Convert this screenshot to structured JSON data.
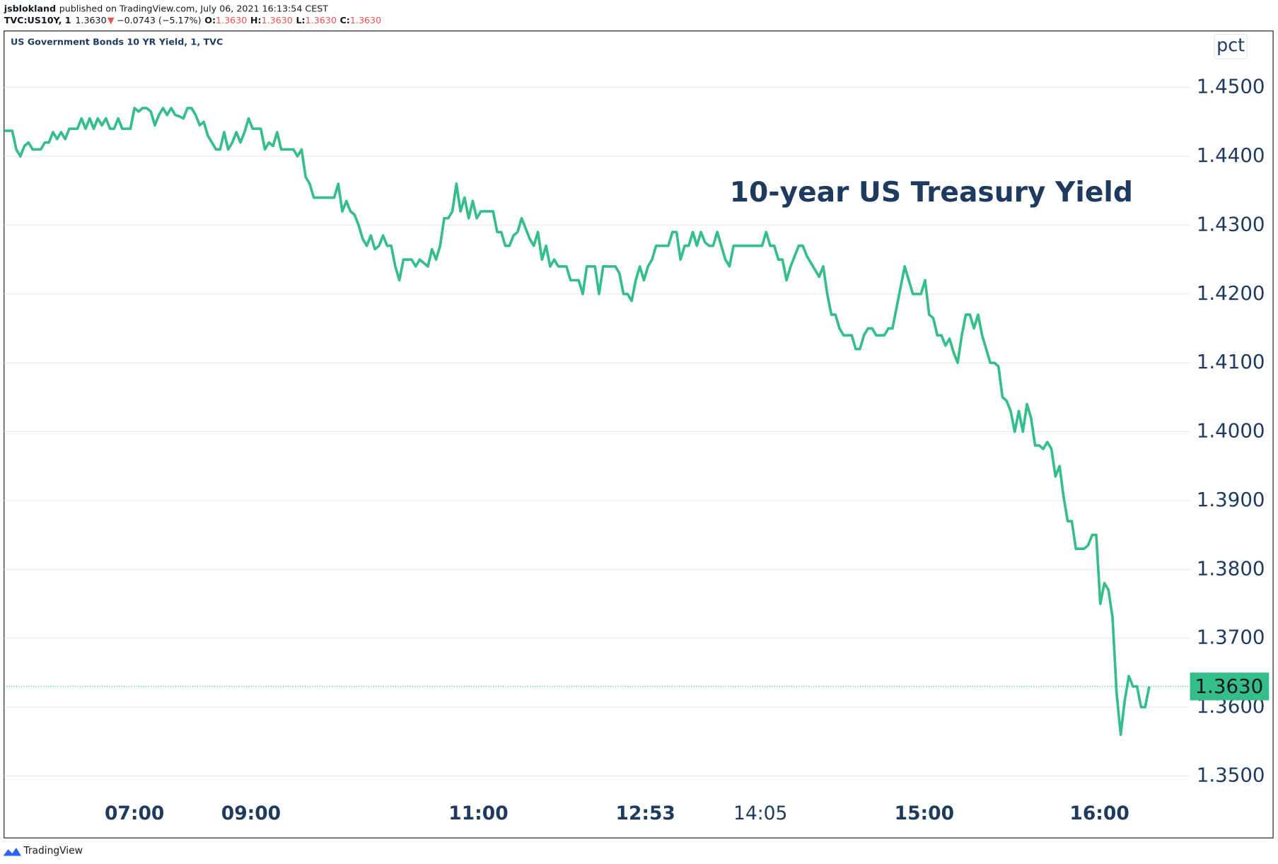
{
  "chart_data": {
    "type": "line",
    "author": "jsblokland",
    "published": "published on TradingView.com, July 06, 2021 16:13:54 CEST",
    "symbol": "TVC:US10Y, 1",
    "price": "1.3630",
    "arrow": "▼",
    "change": "−0.0743 (−5.17%)",
    "ohlc": [
      {
        "label": "O:",
        "value": "1.3630"
      },
      {
        "label": "H:",
        "value": "1.3630"
      },
      {
        "label": "L:",
        "value": "1.3630"
      },
      {
        "label": "C:",
        "value": "1.3630"
      }
    ],
    "legend_title": "US Government Bonds 10 YR Yield, 1, TVC",
    "unit": "pct",
    "title": "10-year US Treasury Yield",
    "brand": "TradingView",
    "color": "#35be8a",
    "values": [
      1.4437,
      1.4437,
      1.4437,
      1.441,
      1.44,
      1.4415,
      1.442,
      1.441,
      1.441,
      1.441,
      1.442,
      1.442,
      1.4435,
      1.4425,
      1.4435,
      1.4425,
      1.444,
      1.444,
      1.444,
      1.4455,
      1.444,
      1.4455,
      1.444,
      1.4455,
      1.4445,
      1.4455,
      1.444,
      1.444,
      1.4455,
      1.444,
      1.444,
      1.444,
      1.447,
      1.4465,
      1.447,
      1.447,
      1.4465,
      1.4445,
      1.446,
      1.447,
      1.446,
      1.447,
      1.446,
      1.4458,
      1.4455,
      1.447,
      1.447,
      1.446,
      1.4445,
      1.445,
      1.443,
      1.442,
      1.441,
      1.441,
      1.4435,
      1.441,
      1.442,
      1.4435,
      1.442,
      1.4435,
      1.4455,
      1.444,
      1.444,
      1.444,
      1.441,
      1.442,
      1.4415,
      1.4435,
      1.441,
      1.441,
      1.441,
      1.441,
      1.44,
      1.441,
      1.437,
      1.436,
      1.434,
      1.434,
      1.434,
      1.434,
      1.434,
      1.434,
      1.436,
      1.432,
      1.4335,
      1.432,
      1.4315,
      1.43,
      1.428,
      1.427,
      1.4285,
      1.4265,
      1.427,
      1.4285,
      1.427,
      1.427,
      1.424,
      1.422,
      1.425,
      1.425,
      1.425,
      1.424,
      1.425,
      1.4245,
      1.424,
      1.4265,
      1.425,
      1.427,
      1.431,
      1.431,
      1.432,
      1.436,
      1.432,
      1.434,
      1.431,
      1.4335,
      1.431,
      1.432,
      1.432,
      1.432,
      1.432,
      1.429,
      1.429,
      1.427,
      1.427,
      1.4285,
      1.429,
      1.431,
      1.4295,
      1.428,
      1.427,
      1.429,
      1.425,
      1.427,
      1.424,
      1.425,
      1.424,
      1.424,
      1.424,
      1.422,
      1.422,
      1.422,
      1.42,
      1.424,
      1.424,
      1.424,
      1.42,
      1.424,
      1.424,
      1.424,
      1.424,
      1.423,
      1.42,
      1.42,
      1.419,
      1.422,
      1.424,
      1.422,
      1.424,
      1.425,
      1.427,
      1.427,
      1.427,
      1.427,
      1.429,
      1.429,
      1.425,
      1.427,
      1.427,
      1.429,
      1.427,
      1.429,
      1.4275,
      1.427,
      1.427,
      1.429,
      1.427,
      1.425,
      1.424,
      1.427,
      1.427,
      1.427,
      1.427,
      1.427,
      1.427,
      1.427,
      1.427,
      1.429,
      1.427,
      1.427,
      1.425,
      1.425,
      1.422,
      1.424,
      1.4255,
      1.427,
      1.427,
      1.4255,
      1.4245,
      1.4235,
      1.4225,
      1.424,
      1.42,
      1.417,
      1.417,
      1.415,
      1.414,
      1.414,
      1.414,
      1.412,
      1.412,
      1.414,
      1.415,
      1.415,
      1.414,
      1.414,
      1.414,
      1.415,
      1.415,
      1.418,
      1.421,
      1.424,
      1.422,
      1.42,
      1.42,
      1.42,
      1.422,
      1.417,
      1.4165,
      1.414,
      1.414,
      1.4125,
      1.4135,
      1.4115,
      1.41,
      1.414,
      1.417,
      1.417,
      1.415,
      1.417,
      1.414,
      1.412,
      1.41,
      1.41,
      1.4095,
      1.405,
      1.4045,
      1.403,
      1.4,
      1.403,
      1.4,
      1.404,
      1.402,
      1.398,
      1.398,
      1.3975,
      1.3985,
      1.3975,
      1.3935,
      1.395,
      1.3905,
      1.387,
      1.387,
      1.383,
      1.383,
      1.383,
      1.3835,
      1.385,
      1.385,
      1.375,
      1.378,
      1.377,
      1.373,
      1.362,
      1.356,
      1.361,
      1.3645,
      1.363,
      1.363,
      1.36,
      1.36,
      1.363
    ],
    "xlim": [
      0,
      311.4
    ],
    "xticks": [
      {
        "value": 32,
        "label": "07:00"
      },
      {
        "value": 60.6,
        "label": "09:00"
      },
      {
        "value": 116.4,
        "label": "11:00"
      },
      {
        "value": 157.4,
        "label": "12:53"
      },
      {
        "value": 185.6,
        "label": "14:05"
      },
      {
        "value": 225.8,
        "label": "15:00"
      },
      {
        "value": 268.8,
        "label": "16:00"
      }
    ],
    "ylim": [
      1.341,
      1.4582
    ],
    "yticks": [
      {
        "value": 1.35,
        "label": "1.3500"
      },
      {
        "value": 1.36,
        "label": "1.3600"
      },
      {
        "value": 1.37,
        "label": "1.3700"
      },
      {
        "value": 1.38,
        "label": "1.3800"
      },
      {
        "value": 1.39,
        "label": "1.3900"
      },
      {
        "value": 1.4,
        "label": "1.4000"
      },
      {
        "value": 1.41,
        "label": "1.4100"
      },
      {
        "value": 1.42,
        "label": "1.4200"
      },
      {
        "value": 1.43,
        "label": "1.4300"
      },
      {
        "value": 1.44,
        "label": "1.4400"
      },
      {
        "value": 1.45,
        "label": "1.4500"
      }
    ],
    "last_value": {
      "value": 1.363,
      "label": "1.3630"
    },
    "grid": true
  }
}
